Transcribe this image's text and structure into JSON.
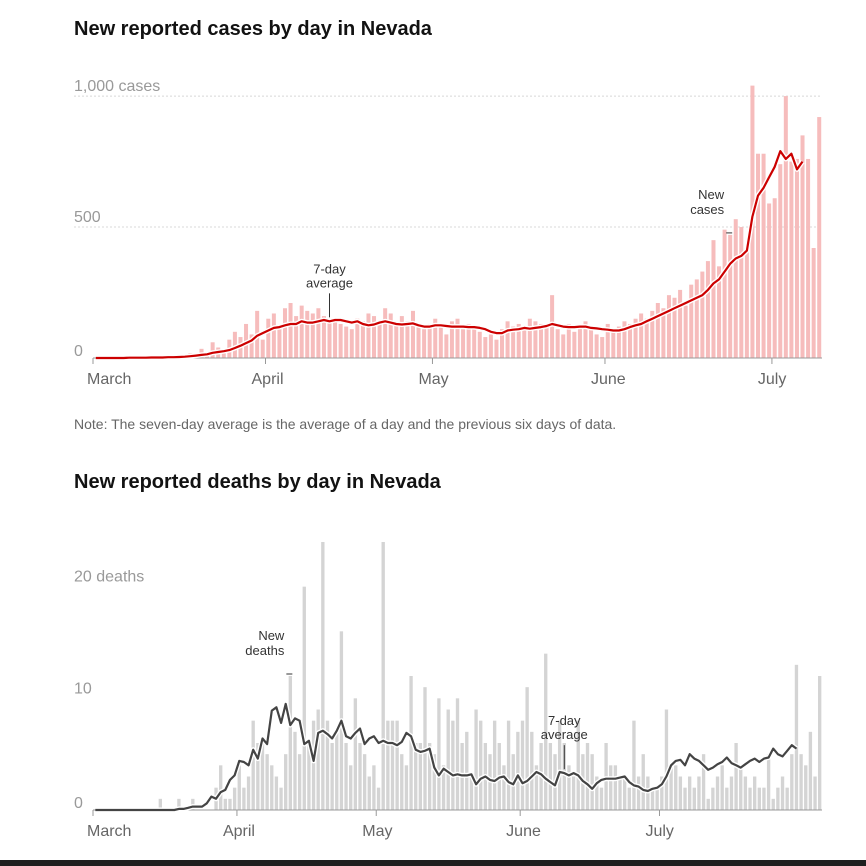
{
  "note": "Note: The seven-day average is the average of a day and the previous six days of data.",
  "colors": {
    "case_bar": "#f6bcbc",
    "case_line": "#cc0000",
    "death_bar": "#d4d4d4",
    "death_line": "#444444",
    "grid": "#d8d8d8",
    "axis_text": "#999999"
  },
  "chart_data": [
    {
      "type": "bar",
      "title": "New reported cases by day in Nevada",
      "x_ticks": [
        "March",
        "April",
        "May",
        "June",
        "July"
      ],
      "y_ticks": [
        {
          "value": 0,
          "label": "0"
        },
        {
          "value": 500,
          "label": "500"
        },
        {
          "value": 1000,
          "label": "1,000 cases"
        }
      ],
      "ylim": [
        0,
        1050
      ],
      "grid": true,
      "annotations": [
        {
          "target": "bar",
          "index": 114,
          "lines": [
            "New",
            "cases"
          ]
        },
        {
          "target": "line",
          "index": 42,
          "lines": [
            "7-day",
            "average"
          ]
        }
      ],
      "series": [
        {
          "name": "New cases",
          "kind": "bar",
          "values": [
            0,
            0,
            0,
            0,
            0,
            0,
            1,
            1,
            1,
            2,
            2,
            3,
            3,
            5,
            4,
            8,
            10,
            18,
            12,
            35,
            10,
            60,
            40,
            30,
            70,
            100,
            80,
            130,
            90,
            180,
            70,
            150,
            170,
            120,
            190,
            210,
            160,
            200,
            180,
            170,
            190,
            160,
            150,
            140,
            130,
            120,
            110,
            150,
            140,
            170,
            160,
            140,
            190,
            170,
            130,
            160,
            140,
            180,
            120,
            110,
            130,
            150,
            120,
            90,
            140,
            150,
            110,
            130,
            120,
            100,
            80,
            90,
            70,
            110,
            140,
            120,
            130,
            110,
            150,
            140,
            130,
            120,
            240,
            110,
            90,
            130,
            100,
            120,
            140,
            110,
            90,
            80,
            130,
            100,
            120,
            140,
            130,
            150,
            170,
            150,
            180,
            210,
            190,
            240,
            230,
            260,
            200,
            280,
            300,
            330,
            370,
            450,
            350,
            490,
            470,
            530,
            500,
            420,
            1040,
            780,
            780,
            590,
            610,
            740,
            1000,
            750,
            760,
            850,
            760,
            420,
            920
          ]
        },
        {
          "name": "7-day average",
          "kind": "line",
          "values": [
            0,
            0,
            0,
            0,
            0,
            0,
            1,
            1,
            1,
            1,
            2,
            2,
            2,
            3,
            3,
            4,
            5,
            7,
            9,
            12,
            14,
            20,
            23,
            26,
            30,
            38,
            47,
            57,
            67,
            85,
            95,
            105,
            115,
            118,
            125,
            130,
            130,
            140,
            135,
            135,
            140,
            145,
            140,
            145,
            145,
            140,
            135,
            140,
            130,
            125,
            128,
            135,
            140,
            135,
            130,
            128,
            130,
            132,
            125,
            120,
            120,
            125,
            125,
            122,
            120,
            120,
            120,
            118,
            118,
            115,
            110,
            100,
            95,
            95,
            105,
            108,
            110,
            115,
            112,
            115,
            118,
            122,
            130,
            125,
            120,
            118,
            118,
            120,
            120,
            115,
            113,
            110,
            108,
            105,
            105,
            110,
            118,
            125,
            130,
            140,
            150,
            160,
            170,
            180,
            190,
            200,
            210,
            220,
            230,
            240,
            260,
            285,
            300,
            330,
            360,
            380,
            390,
            410,
            540,
            620,
            650,
            690,
            730,
            790,
            760,
            780,
            720,
            750
          ]
        }
      ]
    },
    {
      "type": "bar",
      "title": "New reported deaths by day in Nevada",
      "x_ticks": [
        "March",
        "April",
        "May",
        "June",
        "July"
      ],
      "y_ticks": [
        {
          "value": 0,
          "label": "0"
        },
        {
          "value": 10,
          "label": "10"
        },
        {
          "value": 20,
          "label": "20 deaths"
        }
      ],
      "ylim": [
        0,
        24
      ],
      "grid": false,
      "annotations": [
        {
          "target": "bar",
          "index": 42,
          "lines": [
            "New",
            "deaths"
          ]
        },
        {
          "target": "line",
          "index": 101,
          "lines": [
            "7-day",
            "average"
          ]
        }
      ],
      "series": [
        {
          "name": "New deaths",
          "kind": "bar",
          "values": [
            0,
            0,
            0,
            0,
            0,
            0,
            0,
            0,
            0,
            0,
            0,
            0,
            0,
            0,
            1,
            0,
            0,
            0,
            1,
            0,
            0,
            1,
            0,
            0,
            0,
            0,
            2,
            4,
            1,
            1,
            2,
            4,
            2,
            3,
            8,
            6,
            6,
            5,
            4,
            3,
            2,
            5,
            12,
            7,
            5,
            20,
            6,
            8,
            9,
            24,
            8,
            6,
            7,
            16,
            6,
            4,
            10,
            6,
            5,
            3,
            4,
            2,
            24,
            8,
            8,
            8,
            5,
            4,
            12,
            6,
            6,
            11,
            6,
            5,
            10,
            4,
            9,
            8,
            10,
            6,
            7,
            3,
            9,
            8,
            6,
            5,
            8,
            6,
            4,
            8,
            5,
            7,
            8,
            11,
            7,
            4,
            6,
            14,
            6,
            5,
            8,
            6,
            4,
            3,
            8,
            5,
            6,
            5,
            3,
            2,
            6,
            4,
            4,
            3,
            3,
            2,
            8,
            3,
            5,
            3,
            2,
            2,
            3,
            9,
            4,
            4,
            3,
            2,
            3,
            2,
            3,
            5,
            1,
            2,
            3,
            4,
            2,
            3,
            6,
            4,
            3,
            2,
            3,
            2,
            2,
            5,
            1,
            2,
            3,
            2,
            5,
            13,
            5,
            4,
            7,
            3,
            12
          ]
        },
        {
          "name": "7-day average",
          "kind": "line",
          "values": [
            0,
            0,
            0,
            0,
            0,
            0,
            0,
            0,
            0,
            0,
            0,
            0,
            0,
            0,
            0,
            0,
            0,
            0,
            0.1,
            0.1,
            0.2,
            0.3,
            0.3,
            0.3,
            0.6,
            1.2,
            1.0,
            1.6,
            1.8,
            2.7,
            3.1,
            4.4,
            4.3,
            4.0,
            5.4,
            4.6,
            6.4,
            5.9,
            8.9,
            9.2,
            7.8,
            9.5,
            7.6,
            8.2,
            8.0,
            5.9,
            6.2,
            4.4,
            6.9,
            7.1,
            6.8,
            6.4,
            7.1,
            8.0,
            6.6,
            6.4,
            6.9,
            7.3,
            5.9,
            6.4,
            6.6,
            6.0,
            6.2,
            6.0,
            6.0,
            5.8,
            6.1,
            6.9,
            6.6,
            5.4,
            5.2,
            5.3,
            5.5,
            3.8,
            3.1,
            3.7,
            3.4,
            3.1,
            3.2,
            3.1,
            3.1,
            3.2,
            2.3,
            2.8,
            3.0,
            2.7,
            2.6,
            2.9,
            3.0,
            2.5,
            2.3,
            3.1,
            2.4,
            2.6,
            3.0,
            3.4,
            3.2,
            2.8,
            2.5,
            2.2,
            3.4,
            3.3,
            3.1,
            3.3,
            3.1,
            2.6,
            2.3,
            1.9,
            2.4,
            2.7,
            2.8,
            2.8,
            2.8,
            2.9,
            3.0,
            2.5,
            2.2,
            2.1,
            1.8,
            1.7,
            1.9,
            2.0,
            2.3,
            3.0,
            4.0,
            4.4,
            4.5,
            4.0,
            5.0,
            4.6,
            4.4,
            4.0,
            3.6,
            3.8,
            4.1,
            4.3,
            4.7,
            4.2,
            4.0,
            3.8,
            4.1,
            4.4,
            4.6,
            4.3,
            4.6,
            4.7,
            5.5,
            5.0,
            4.8,
            5.3,
            5.8,
            5.5
          ]
        }
      ]
    }
  ]
}
